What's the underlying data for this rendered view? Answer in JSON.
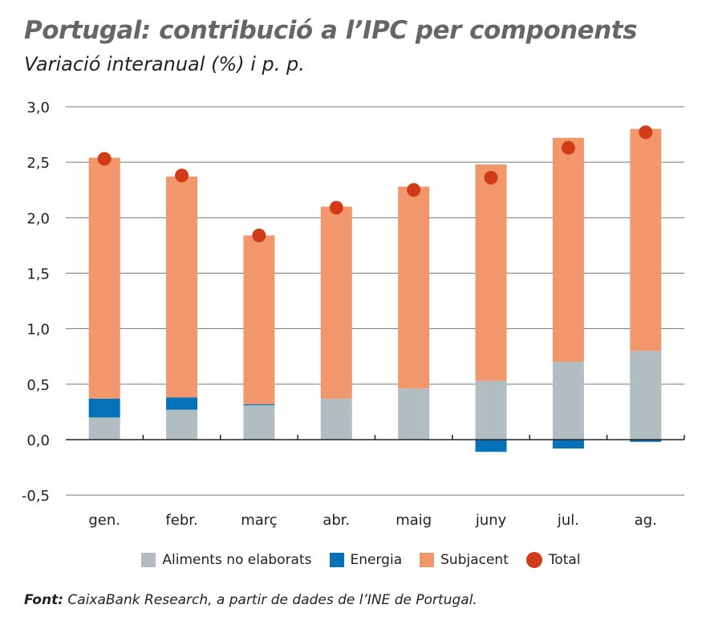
{
  "title": "Portugal: contribució a l’IPC per components",
  "subtitle": "Variació interanual (%) i p. p.",
  "source": {
    "label": "Font:",
    "text": " CaixaBank Research, a partir de dades de l’INE de Portugal."
  },
  "chart_data": {
    "type": "bar",
    "stacked": true,
    "categories": [
      "gen.",
      "febr.",
      "març",
      "abr.",
      "maig",
      "juny",
      "jul.",
      "ag."
    ],
    "ylim": [
      -0.5,
      3.0
    ],
    "yticks": [
      "-0,5",
      "0,0",
      "0,5",
      "1,0",
      "1,5",
      "2,0",
      "2,5",
      "3,0"
    ],
    "ytick_values": [
      -0.5,
      0,
      0.5,
      1.0,
      1.5,
      2.0,
      2.5,
      3.0
    ],
    "grid": true,
    "legend": "bottom",
    "series": [
      {
        "name": "Aliments no elaborats",
        "kind": "bar",
        "color": "#b1bdc0",
        "values": [
          0.2,
          0.27,
          0.31,
          0.37,
          0.46,
          0.53,
          0.7,
          0.8
        ]
      },
      {
        "name": "Energia",
        "kind": "bar",
        "color": "#0472b9",
        "values": [
          0.17,
          0.11,
          0.01,
          0.0,
          0.0,
          -0.11,
          -0.08,
          -0.02
        ]
      },
      {
        "name": "Subjacent",
        "kind": "bar",
        "color": "#f2976b",
        "values": [
          2.17,
          1.99,
          1.52,
          1.73,
          1.82,
          1.95,
          2.02,
          2.0
        ]
      },
      {
        "name": "Total",
        "kind": "dot",
        "color": "#d13b17",
        "values": [
          2.53,
          2.38,
          1.84,
          2.09,
          2.25,
          2.36,
          2.63,
          2.77
        ]
      }
    ]
  }
}
